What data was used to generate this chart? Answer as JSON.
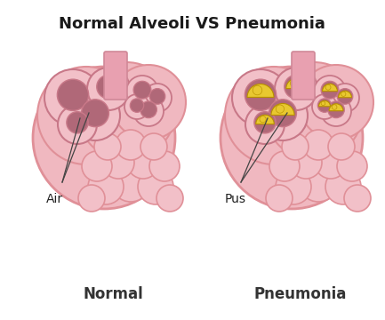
{
  "title": "Normal Alveoli VS Pneumonia",
  "title_fontsize": 13,
  "title_fontweight": "bold",
  "label_normal": "Normal",
  "label_pneumonia": "Pneumonia",
  "label_air": "Air",
  "label_pus": "Pus",
  "label_fontsize": 12,
  "annotation_fontsize": 10,
  "bg_color": "#ffffff",
  "pink_light": "#f0b8c0",
  "pink_medium": "#e09098",
  "pink_dark": "#c87888",
  "pink_outer": "#f2c0c8",
  "pink_bubble": "#e8a8b4",
  "mauve_fill": "#b06878",
  "mauve_dark": "#985868",
  "mauve_inner": "#c07888",
  "stem_color": "#e8a0b0",
  "stem_edge": "#d08898",
  "yellow_pus": "#d4aa00",
  "yellow_pus_light": "#e8c830",
  "yellow_pus_dark": "#b89000",
  "figsize": [
    4.33,
    3.6
  ],
  "dpi": 100
}
